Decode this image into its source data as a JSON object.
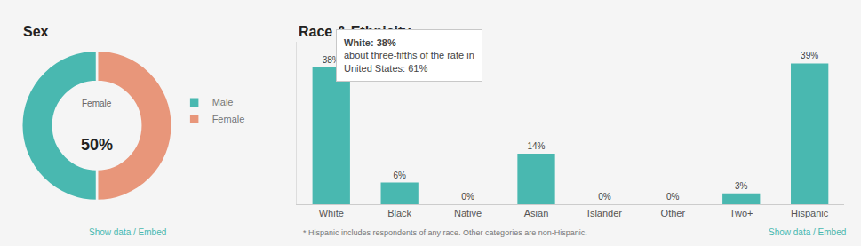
{
  "chart_data": [
    {
      "type": "pie",
      "title": "Sex",
      "categories": [
        "Female",
        "Male"
      ],
      "values": [
        50,
        50
      ],
      "colors": [
        "#e8967a",
        "#49b8b0"
      ],
      "legend": "right",
      "annotations": [
        "Female",
        "50%",
        "Show data / Embed"
      ]
    },
    {
      "type": "bar",
      "title": "Race & Ethnicity",
      "categories": [
        "White",
        "Black",
        "Native",
        "Asian",
        "Islander",
        "Other",
        "Two+",
        "Hispanic"
      ],
      "values": [
        38,
        6,
        0,
        14,
        0,
        0,
        3,
        39
      ],
      "value_labels": [
        "38%",
        "6%",
        "0%",
        "14%",
        "0%",
        "0%",
        "3%",
        "39%"
      ],
      "color": "#49b8b0",
      "ylim": [
        0,
        45
      ],
      "data_labels": true,
      "tick_labels": "x",
      "grid": false,
      "annotations": [
        "White: 38%",
        "about three-fifths of the rate in",
        "United States: 61%",
        "* Hispanic includes respondents of any race. Other categories are non-Hispanic.",
        "Show data / Embed"
      ]
    }
  ]
}
